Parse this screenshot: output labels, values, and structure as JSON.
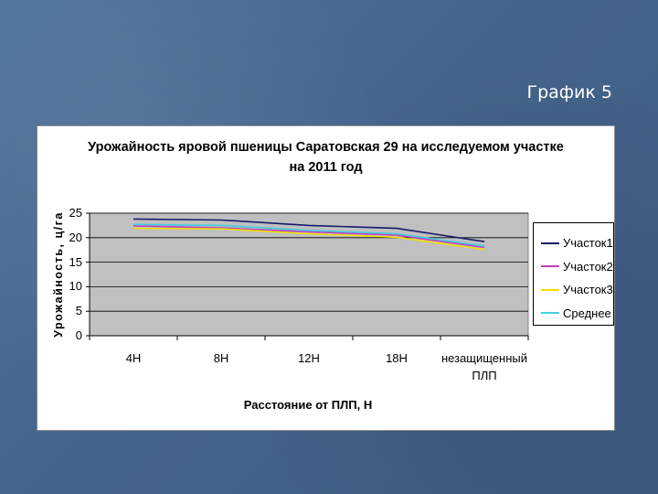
{
  "slide": {
    "title": "График 5"
  },
  "chart_data": {
    "type": "line",
    "title_lines": [
      "Урожайность яровой пшеницы Саратовская 29 на исследуемом участке",
      "на 2011 год"
    ],
    "xlabel": "Расстояние от ПЛП, Н",
    "ylabel": "Урожайность, ц/га",
    "categories": [
      "4Н",
      "8Н",
      "12Н",
      "18Н",
      "незащищенный ПЛП"
    ],
    "yticks": [
      "0",
      "5",
      "10",
      "15",
      "20",
      "25"
    ],
    "ylim": [
      0,
      25
    ],
    "grid": true,
    "legend_position": "right",
    "series": [
      {
        "name": "Участок1",
        "color": "#1a1a6e",
        "values": [
          23.8,
          23.6,
          22.5,
          21.9,
          19.2
        ]
      },
      {
        "name": "Участок2",
        "color": "#c040c0",
        "values": [
          22.4,
          22.0,
          21.2,
          20.5,
          18.0
        ]
      },
      {
        "name": "Участок3",
        "color": "#f0e000",
        "values": [
          21.9,
          21.8,
          20.8,
          20.1,
          17.6
        ]
      },
      {
        "name": "Среднее",
        "color": "#40d0e0",
        "values": [
          22.7,
          22.5,
          21.5,
          20.8,
          18.3
        ]
      }
    ]
  }
}
